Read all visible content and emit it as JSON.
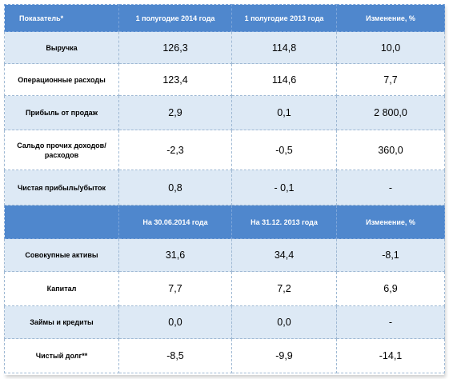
{
  "colors": {
    "header_bg": "#4f87cd",
    "header_text": "#ffffff",
    "row_shade": "#dde9f5",
    "row_plain": "#ffffff",
    "border": "#9fb9d4"
  },
  "header1": {
    "indicator": "Показатель*",
    "col1": "1 полугодие  2014 года",
    "col2": "1 полугодие  2013 года",
    "col3": "Изменение, %"
  },
  "section1": [
    {
      "label": "Выручка",
      "v1": "126,3",
      "v2": "114,8",
      "v3": "10,0"
    },
    {
      "label": "Операционные расходы",
      "v1": "123,4",
      "v2": "114,6",
      "v3": "7,7"
    },
    {
      "label": "Прибыль от продаж",
      "v1": "2,9",
      "v2": "0,1",
      "v3": "2 800,0"
    },
    {
      "label_line1": "Сальдо прочих доходов/",
      "label_line2": "расходов",
      "v1": "-2,3",
      "v2": "-0,5",
      "v3": "360,0"
    },
    {
      "label": "Чистая прибыль/убыток",
      "v1": "0,8",
      "v2": "- 0,1",
      "v3": "-"
    }
  ],
  "header2": {
    "indicator": "",
    "col1": "На 30.06.2014 года",
    "col2": "На 31.12. 2013 года",
    "col3": "Изменение, %"
  },
  "section2": [
    {
      "label": "Совокупные активы",
      "v1": "31,6",
      "v2": "34,4",
      "v3": "-8,1"
    },
    {
      "label": "Капитал",
      "v1": "7,7",
      "v2": "7,2",
      "v3": "6,9"
    },
    {
      "label": "Займы и кредиты",
      "v1": "0,0",
      "v2": "0,0",
      "v3": "-"
    },
    {
      "label": "Чистый долг**",
      "v1": "-8,5",
      "v2": "-9,9",
      "v3": "-14,1"
    }
  ]
}
